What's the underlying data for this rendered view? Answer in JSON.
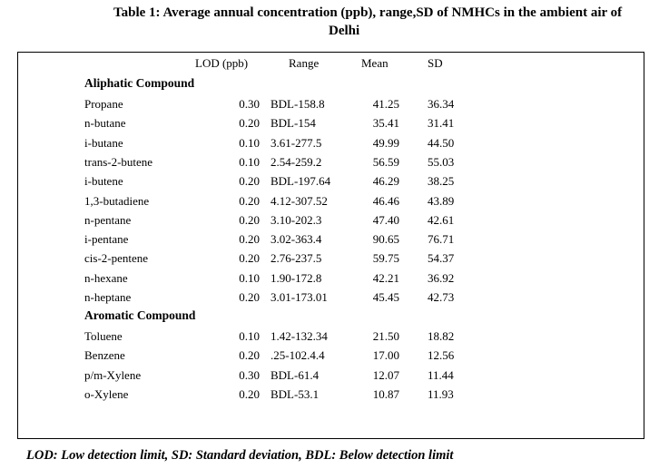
{
  "title": {
    "line1": "Table 1: Average annual concentration (ppb), range,SD of NMHCs in the ambient air of",
    "line2": "Delhi"
  },
  "headers": {
    "lod": "LOD (ppb)",
    "range": "Range",
    "mean": "Mean",
    "sd": "SD"
  },
  "sections": {
    "aliphatic": "Aliphatic Compound",
    "aromatic": "Aromatic Compound"
  },
  "aliphatic_rows": [
    {
      "name": "Propane",
      "lod": "0.30",
      "range": "BDL-158.8",
      "mean": "41.25",
      "sd": "36.34"
    },
    {
      "name": "n-butane",
      "lod": "0.20",
      "range": "BDL-154",
      "mean": "35.41",
      "sd": "31.41"
    },
    {
      "name": "i-butane",
      "lod": "0.10",
      "range": "3.61-277.5",
      "mean": "49.99",
      "sd": "44.50"
    },
    {
      "name": "trans-2-butene",
      "lod": "0.10",
      "range": "2.54-259.2",
      "mean": "56.59",
      "sd": "55.03"
    },
    {
      "name": "i-butene",
      "lod": "0.20",
      "range": "BDL-197.64",
      "mean": "46.29",
      "sd": "38.25"
    },
    {
      "name": "1,3-butadiene",
      "lod": "0.20",
      "range": "4.12-307.52",
      "mean": "46.46",
      "sd": "43.89"
    },
    {
      "name": "n-pentane",
      "lod": "0.20",
      "range": "3.10-202.3",
      "mean": "47.40",
      "sd": "42.61"
    },
    {
      "name": "i-pentane",
      "lod": "0.20",
      "range": "3.02-363.4",
      "mean": "90.65",
      "sd": "76.71"
    },
    {
      "name": "cis-2-pentene",
      "lod": "0.20",
      "range": "2.76-237.5",
      "mean": "59.75",
      "sd": "54.37"
    },
    {
      "name": "n-hexane",
      "lod": "0.10",
      "range": "1.90-172.8",
      "mean": "42.21",
      "sd": "36.92"
    },
    {
      "name": "n-heptane",
      "lod": "0.20",
      "range": "3.01-173.01",
      "mean": "45.45",
      "sd": "42.73"
    }
  ],
  "aromatic_rows": [
    {
      "name": "Toluene",
      "lod": "0.10",
      "range": "1.42-132.34",
      "mean": "21.50",
      "sd": "18.82"
    },
    {
      "name": "Benzene",
      "lod": "0.20",
      "range": ".25-102.4.4",
      "mean": "17.00",
      "sd": "12.56"
    },
    {
      "name": "p/m-Xylene",
      "lod": "0.30",
      "range": "BDL-61.4",
      "mean": "12.07",
      "sd": "11.44"
    },
    {
      "name": "o-Xylene",
      "lod": "0.20",
      "range": "BDL-53.1",
      "mean": "10.87",
      "sd": "11.93"
    }
  ],
  "footnote": "LOD: Low detection limit, SD: Standard deviation, BDL: Below detection limit"
}
